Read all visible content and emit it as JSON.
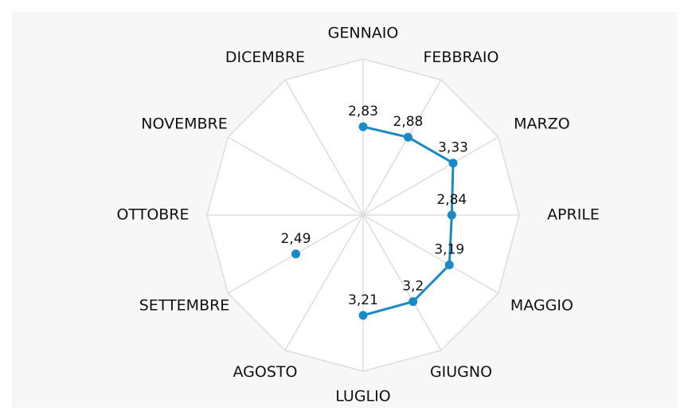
{
  "chart_data": {
    "type": "radar",
    "categories": [
      "GENNAIO",
      "FEBBRAIO",
      "MARZO",
      "APRILE",
      "MAGGIO",
      "GIUGNO",
      "LUGLIO",
      "AGOSTO",
      "SETTEMBRE",
      "OTTOBRE",
      "NOVEMBRE",
      "DICEMBRE"
    ],
    "values": [
      2.83,
      2.88,
      3.33,
      2.84,
      3.19,
      3.2,
      3.21,
      null,
      2.49,
      null,
      null,
      null
    ],
    "value_labels": [
      "2,83",
      "2,88",
      "3,33",
      "2,84",
      "3,19",
      "3,2",
      "3,21",
      null,
      "2,49",
      null,
      null,
      null
    ],
    "color": "#1a8ac6",
    "ylim": [
      0,
      5
    ]
  }
}
